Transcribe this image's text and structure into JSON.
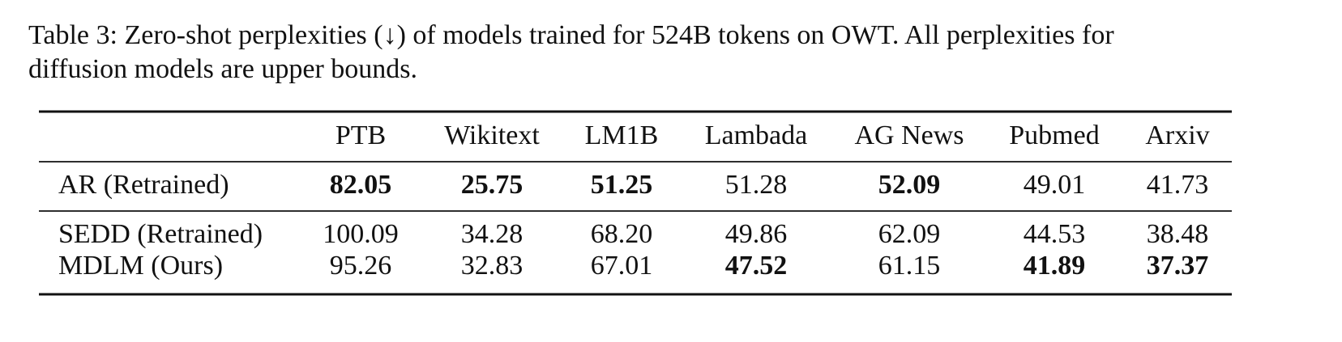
{
  "caption": [
    "Table 3: Zero-shot perplexities (↓) of models trained for 524B tokens on OWT. All perplexities for",
    "diffusion models are upper bounds."
  ],
  "table": {
    "columns": [
      "PTB",
      "Wikitext",
      "LM1B",
      "Lambada",
      "AG News",
      "Pubmed",
      "Arxiv"
    ],
    "groups": [
      [
        {
          "label": "AR (Retrained)",
          "values": [
            "82.05",
            "25.75",
            "51.25",
            "51.28",
            "52.09",
            "49.01",
            "41.73"
          ]
        }
      ],
      [
        {
          "label": "SEDD (Retrained)",
          "values": [
            "100.09",
            "34.28",
            "68.20",
            "49.86",
            "62.09",
            "44.53",
            "38.48"
          ]
        },
        {
          "label": "MDLM (Ours)",
          "values": [
            "95.26",
            "32.83",
            "67.01",
            "47.52",
            "61.15",
            "41.89",
            "37.37"
          ]
        }
      ]
    ]
  }
}
